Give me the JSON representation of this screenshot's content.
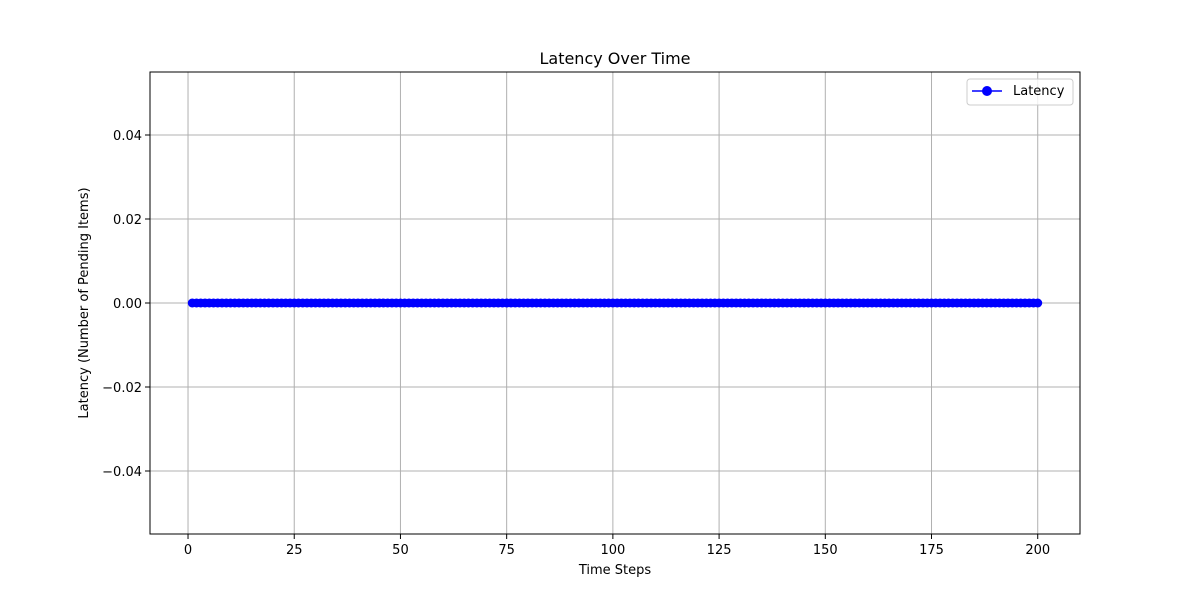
{
  "chart_data": {
    "type": "line",
    "title": "Latency Over Time",
    "xlabel": "Time Steps",
    "ylabel": "Latency (Number of Pending Items)",
    "xlim": [
      -8.95,
      209.95
    ],
    "ylim": [
      -0.055,
      0.055
    ],
    "xticks": [
      0,
      25,
      50,
      75,
      100,
      125,
      150,
      175,
      200
    ],
    "yticks": [
      -0.04,
      -0.02,
      0.0,
      0.02,
      0.04
    ],
    "xtick_labels": [
      "0",
      "25",
      "50",
      "75",
      "100",
      "125",
      "150",
      "175",
      "200"
    ],
    "ytick_labels": [
      "−0.04",
      "−0.02",
      "0.00",
      "0.02",
      "0.04"
    ],
    "grid": true,
    "legend_position": "upper right",
    "series": [
      {
        "name": "Latency",
        "color": "#0000ff",
        "marker": "circle",
        "x_start": 1,
        "x_end": 200,
        "x_step": 1,
        "y_constant": 0
      }
    ]
  }
}
